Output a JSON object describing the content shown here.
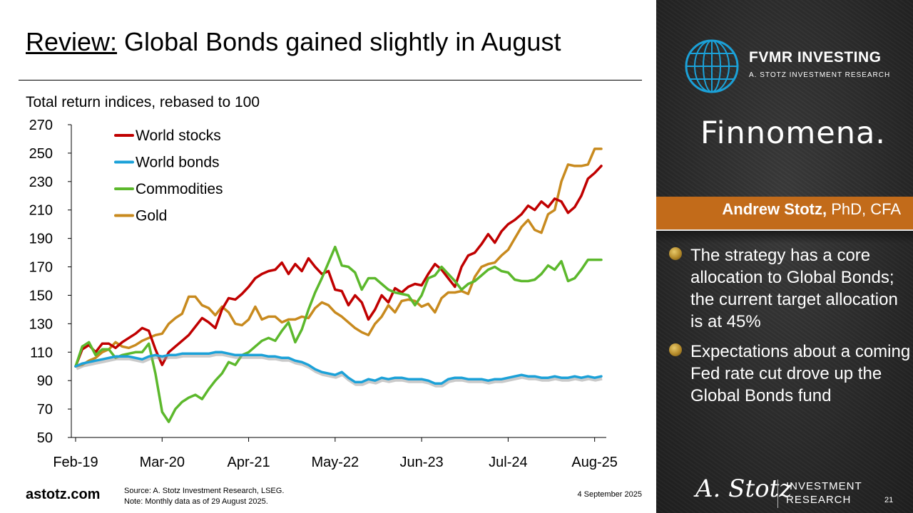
{
  "title": {
    "underlined": "Review:",
    "rest": " Global Bonds gained slightly in August"
  },
  "footer": {
    "site": "astotz.com",
    "source": "Source: A. Stotz Investment Research, LSEG.",
    "note": "Note: Monthly data as of 29 August 2025.",
    "date": "4 September 2025",
    "page": "21"
  },
  "panel": {
    "brand": "FVMR INVESTING",
    "brand_sub": "A. STOTZ INVESTMENT RESEARCH",
    "partner": "Finnomena.",
    "author_name": "Andrew Stotz,",
    "author_cred": " PhD, CFA",
    "bullets": [
      "The strategy has a core allocation to Global Bonds; the current target allocation is at 45%",
      "Expectations about a coming Fed rate cut drove up the Global Bonds fund"
    ],
    "signature": "A. Stotz",
    "ir_line1": "INVESTMENT",
    "ir_line2": "RESEARCH",
    "colors": {
      "author_bar": "#c26b1a",
      "background": "#2a2a2a"
    }
  },
  "chart_data": {
    "type": "line",
    "title": "Total return indices, rebased to 100",
    "x_tick_labels": [
      "Feb-19",
      "Mar-20",
      "Apr-21",
      "May-22",
      "Jun-23",
      "Jul-24",
      "Aug-25"
    ],
    "x_tick_index": [
      0,
      13,
      26,
      39,
      52,
      65,
      78
    ],
    "y_ticks": [
      50,
      70,
      90,
      110,
      130,
      150,
      170,
      190,
      210,
      230,
      250,
      270
    ],
    "ylim": [
      50,
      270
    ],
    "legend_position": "top-left",
    "grid": false,
    "series": [
      {
        "name": "World stocks",
        "color": "#c00000",
        "values": [
          100,
          112,
          115,
          110,
          116,
          116,
          113,
          117,
          120,
          123,
          127,
          125,
          112,
          101,
          110,
          114,
          118,
          122,
          128,
          134,
          131,
          127,
          140,
          148,
          147,
          151,
          156,
          162,
          165,
          167,
          168,
          173,
          165,
          172,
          167,
          176,
          170,
          165,
          167,
          154,
          153,
          143,
          150,
          145,
          133,
          140,
          150,
          145,
          155,
          152,
          156,
          158,
          157,
          165,
          172,
          168,
          162,
          156,
          170,
          178,
          180,
          186,
          193,
          187,
          195,
          200,
          203,
          207,
          213,
          210,
          216,
          212,
          218,
          216,
          208,
          212,
          220,
          232,
          236,
          241
        ]
      },
      {
        "name": "World bonds",
        "color": "#1ba1d8",
        "values": [
          100,
          102,
          103,
          104,
          105,
          106,
          107,
          107,
          107,
          106,
          105,
          107,
          108,
          107,
          108,
          108,
          109,
          109,
          109,
          109,
          109,
          110,
          110,
          109,
          108,
          108,
          108,
          108,
          108,
          107,
          107,
          106,
          106,
          104,
          103,
          101,
          98,
          96,
          95,
          94,
          96,
          92,
          89,
          89,
          91,
          90,
          92,
          91,
          92,
          92,
          91,
          91,
          91,
          90,
          88,
          88,
          91,
          92,
          92,
          91,
          91,
          91,
          90,
          91,
          91,
          92,
          93,
          94,
          93,
          93,
          92,
          92,
          93,
          92,
          92,
          93,
          92,
          93,
          92,
          93
        ]
      },
      {
        "name": "Commodities",
        "color": "#5cb82c",
        "values": [
          100,
          114,
          117,
          108,
          112,
          112,
          106,
          108,
          109,
          110,
          110,
          116,
          95,
          68,
          61,
          70,
          75,
          78,
          80,
          77,
          84,
          90,
          95,
          103,
          101,
          108,
          110,
          114,
          118,
          120,
          118,
          125,
          131,
          117,
          126,
          140,
          152,
          162,
          173,
          184,
          171,
          170,
          166,
          154,
          162,
          162,
          158,
          154,
          152,
          151,
          150,
          143,
          150,
          162,
          164,
          170,
          165,
          160,
          154,
          158,
          160,
          164,
          168,
          170,
          167,
          166,
          161,
          160,
          160,
          161,
          165,
          171,
          168,
          174,
          160,
          162,
          168,
          175,
          175,
          175
        ]
      },
      {
        "name": "Gold",
        "color": "#c88a1e",
        "values": [
          100,
          101,
          104,
          106,
          110,
          112,
          117,
          114,
          113,
          115,
          118,
          120,
          122,
          123,
          130,
          134,
          137,
          149,
          149,
          143,
          141,
          136,
          142,
          138,
          130,
          129,
          133,
          142,
          133,
          135,
          135,
          131,
          133,
          133,
          135,
          134,
          141,
          145,
          143,
          138,
          135,
          131,
          127,
          124,
          122,
          130,
          135,
          143,
          138,
          146,
          147,
          146,
          142,
          144,
          138,
          148,
          152,
          152,
          153,
          151,
          163,
          170,
          172,
          173,
          178,
          182,
          190,
          198,
          203,
          196,
          194,
          207,
          210,
          230,
          242,
          241,
          241,
          242,
          253,
          253
        ]
      }
    ]
  }
}
